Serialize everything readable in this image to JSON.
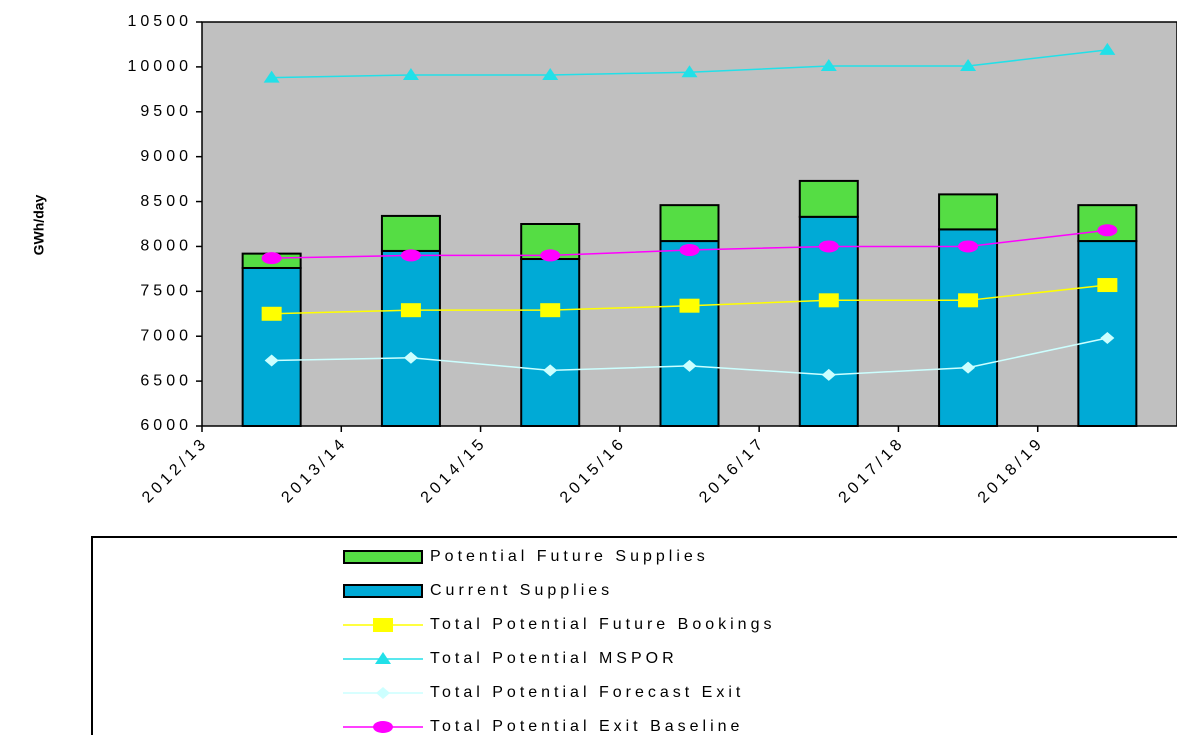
{
  "chart_data": {
    "type": "bar",
    "y_label": "GWh/day",
    "categories": [
      "2012/13",
      "2013/14",
      "2014/15",
      "2015/16",
      "2016/17",
      "2017/18",
      "2018/19"
    ],
    "series": [
      {
        "name": "Potential Future Supplies",
        "mark": "bar",
        "color": "#55dd44",
        "values": [
          160,
          390,
          390,
          400,
          400,
          390,
          400
        ]
      },
      {
        "name": "Current Supplies",
        "mark": "bar",
        "color": "#00aad6",
        "values": [
          7760,
          7950,
          7860,
          8060,
          8330,
          8190,
          8060
        ]
      },
      {
        "name": "Total Potential Future Bookings",
        "mark": "line",
        "marker": "square",
        "color": "#ffff00",
        "values": [
          7250,
          7290,
          7290,
          7340,
          7400,
          7400,
          7570
        ]
      },
      {
        "name": "Total Potential MSPOR",
        "mark": "line",
        "marker": "triangle",
        "color": "#22e0e8",
        "values": [
          9880,
          9910,
          9910,
          9940,
          10010,
          10010,
          10190
        ]
      },
      {
        "name": "Total Potential Forecast Exit",
        "mark": "line",
        "marker": "diamond",
        "color": "#ccffff",
        "values": [
          6730,
          6760,
          6620,
          6670,
          6570,
          6650,
          6980
        ]
      },
      {
        "name": "Total Potential Exit Baseline",
        "mark": "line",
        "marker": "circle",
        "color": "#ff00ff",
        "values": [
          7870,
          7900,
          7900,
          7960,
          8000,
          8000,
          8180
        ]
      }
    ],
    "ylim": [
      6000,
      10500
    ],
    "yticks": [
      6000,
      6500,
      7000,
      7500,
      8000,
      8500,
      9000,
      9500,
      10000,
      10500
    ],
    "plot_background": "#c0c0c0"
  }
}
